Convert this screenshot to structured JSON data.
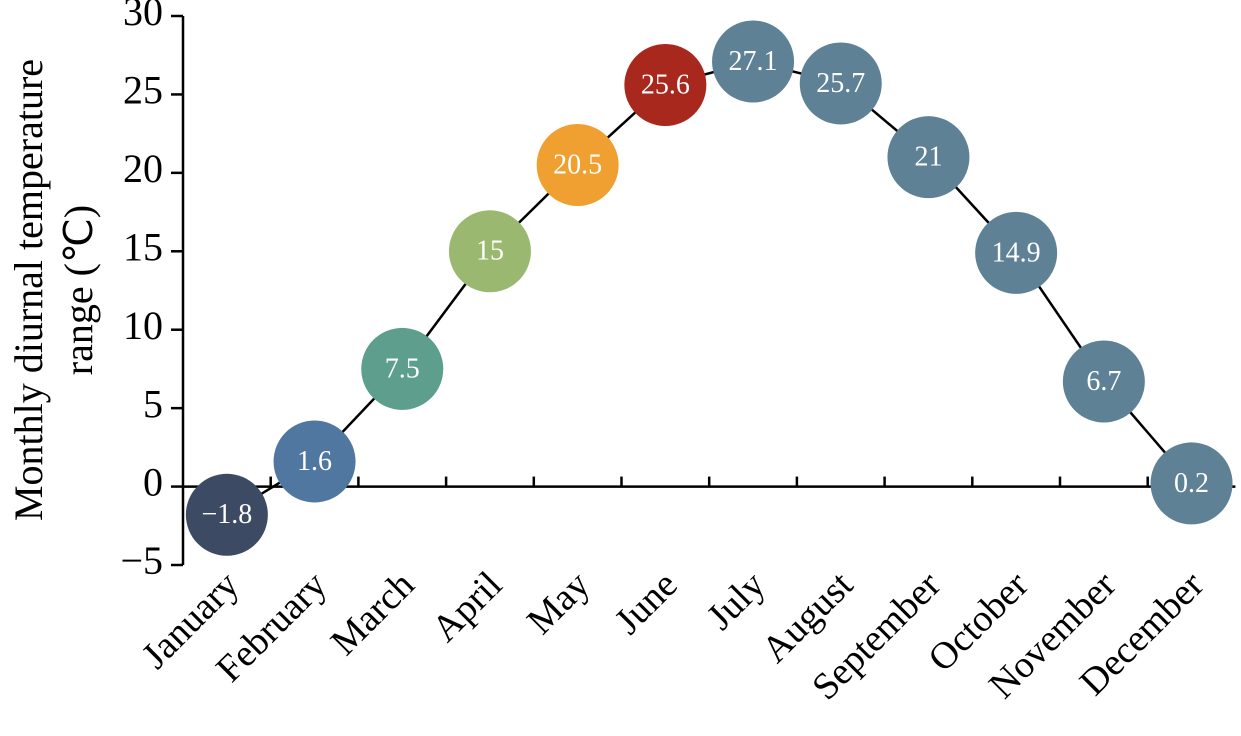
{
  "chart_data": {
    "type": "line",
    "ylabel": [
      "Monthly diurnal temperature",
      "range (℃)"
    ],
    "categories": [
      "January",
      "February",
      "March",
      "April",
      "May",
      "June",
      "July",
      "August",
      "September",
      "October",
      "November",
      "December"
    ],
    "values": [
      -1.8,
      1.6,
      7.5,
      15,
      20.5,
      25.6,
      27.1,
      25.7,
      21,
      14.9,
      6.7,
      0.2
    ],
    "value_labels": [
      "−1.8",
      "1.6",
      "7.5",
      "15",
      "20.5",
      "25.6",
      "27.1",
      "25.7",
      "21",
      "14.9",
      "6.7",
      "0.2"
    ],
    "colors": [
      "#3d4a63",
      "#4f77a0",
      "#5e9e8c",
      "#9bb870",
      "#f0a030",
      "#a8281e",
      "#5f8195",
      "#5f8195",
      "#5f8195",
      "#5f8195",
      "#5f8195",
      "#5f8195"
    ],
    "line_color": "#000000",
    "ylim": [
      -5,
      30
    ],
    "yticks": [
      {
        "value": -5,
        "label": "−5"
      },
      0,
      5,
      10,
      15,
      20,
      25,
      30
    ]
  }
}
